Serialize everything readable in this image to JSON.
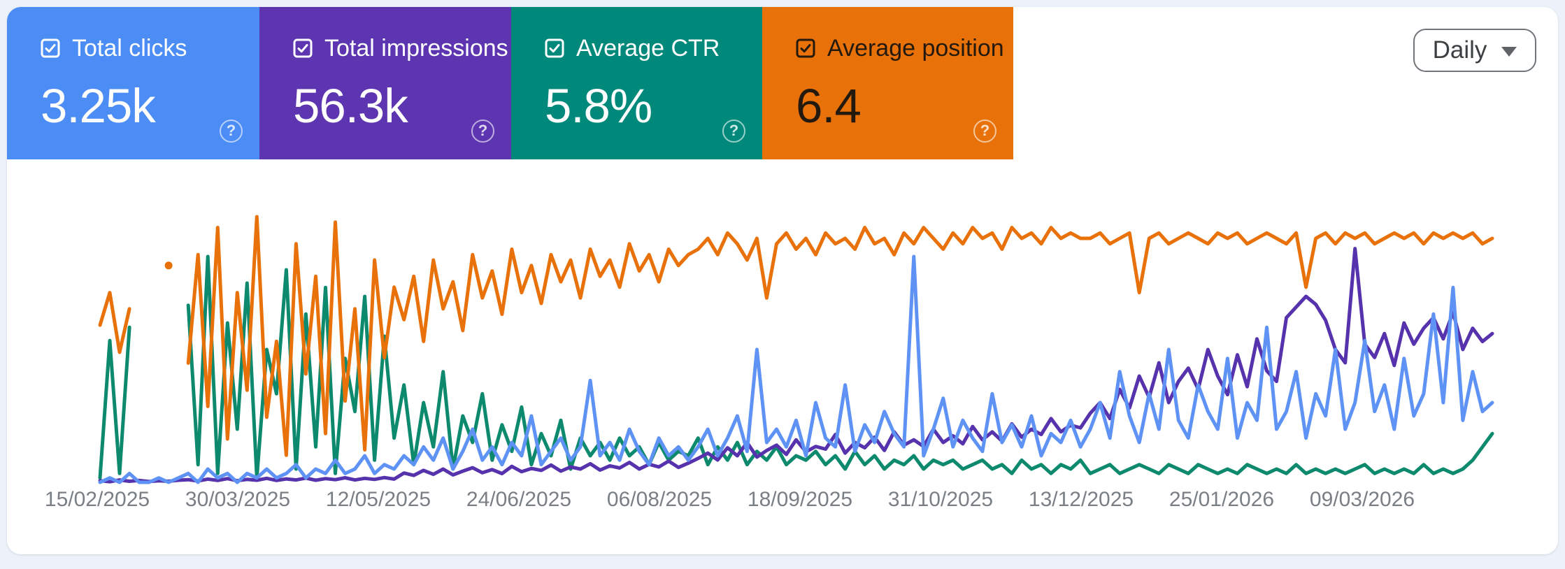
{
  "cards": [
    {
      "id": "clicks",
      "label": "Total clicks",
      "value": "3.25k",
      "bg": "#4c8df5",
      "text_color": "#ffffff",
      "checked": true
    },
    {
      "id": "impressions",
      "label": "Total impressions",
      "value": "56.3k",
      "bg": "#5e35b1",
      "text_color": "#ffffff",
      "checked": true
    },
    {
      "id": "ctr",
      "label": "Average CTR",
      "value": "5.8%",
      "bg": "#00897b",
      "text_color": "#ffffff",
      "checked": true
    },
    {
      "id": "position",
      "label": "Average position",
      "value": "6.4",
      "bg": "#e8710a",
      "text_color": "#23190d",
      "checked": true
    }
  ],
  "controls": {
    "granularity": "Daily"
  },
  "icons": {
    "help_glyph": "?"
  },
  "chart_data": {
    "type": "line",
    "title": "",
    "legend": "none",
    "grid": false,
    "x_unit": "date",
    "sample_interval_days": 3,
    "x_tick_labels": [
      "15/02/2025",
      "30/03/2025",
      "12/05/2025",
      "24/06/2025",
      "06/08/2025",
      "18/09/2025",
      "31/10/2025",
      "13/12/2025",
      "25/01/2026",
      "09/03/2026"
    ],
    "series": [
      {
        "id": "clicks",
        "name": "Clicks",
        "color": "#5e93f5",
        "axis_min": 0,
        "axis_max": 60,
        "reversed": false,
        "values": [
          0,
          1,
          0,
          2,
          0,
          0,
          1,
          0,
          1,
          2,
          0,
          3,
          1,
          2,
          0,
          2,
          1,
          3,
          1,
          2,
          4,
          1,
          3,
          2,
          5,
          2,
          3,
          6,
          2,
          4,
          3,
          6,
          4,
          8,
          5,
          10,
          3,
          7,
          12,
          5,
          8,
          4,
          9,
          6,
          15,
          4,
          7,
          10,
          5,
          8,
          23,
          6,
          9,
          5,
          12,
          7,
          4,
          10,
          6,
          8,
          5,
          8,
          12,
          6,
          10,
          15,
          7,
          30,
          9,
          12,
          8,
          14,
          6,
          18,
          10,
          8,
          22,
          7,
          13,
          9,
          16,
          11,
          8,
          51,
          6,
          12,
          19,
          8,
          14,
          10,
          7,
          20,
          9,
          13,
          8,
          15,
          6,
          11,
          9,
          14,
          8,
          12,
          18,
          10,
          25,
          15,
          9,
          20,
          12,
          30,
          14,
          10,
          22,
          16,
          12,
          28,
          10,
          18,
          14,
          35,
          12,
          16,
          25,
          10,
          20,
          15,
          30,
          12,
          18,
          32,
          16,
          22,
          12,
          28,
          15,
          20,
          38,
          18,
          44,
          14,
          25,
          16,
          18
        ]
      },
      {
        "id": "impressions",
        "name": "Impressions",
        "color": "#5632ad",
        "axis_min": 0,
        "axis_max": 1000,
        "reversed": false,
        "values": [
          6,
          2,
          9,
          4,
          7,
          3,
          6,
          4,
          8,
          10,
          5,
          12,
          7,
          14,
          6,
          11,
          8,
          15,
          7,
          13,
          9,
          16,
          8,
          14,
          10,
          17,
          9,
          15,
          11,
          18,
          12,
          35,
          26,
          45,
          30,
          50,
          28,
          42,
          55,
          36,
          48,
          33,
          60,
          40,
          52,
          45,
          65,
          42,
          58,
          50,
          70,
          46,
          62,
          54,
          75,
          50,
          68,
          58,
          80,
          56,
          72,
          90,
          110,
          84,
          130,
          100,
          150,
          95,
          120,
          140,
          105,
          160,
          115,
          135,
          125,
          180,
          110,
          150,
          130,
          170,
          120,
          190,
          140,
          160,
          135,
          200,
          150,
          175,
          145,
          210,
          160,
          190,
          155,
          220,
          170,
          200,
          180,
          240,
          190,
          215,
          205,
          260,
          300,
          240,
          350,
          280,
          400,
          320,
          450,
          300,
          380,
          430,
          350,
          500,
          400,
          330,
          480,
          360,
          540,
          420,
          380,
          620,
          660,
          700,
          670,
          610,
          500,
          450,
          880,
          520,
          470,
          560,
          440,
          600,
          520,
          580,
          620,
          540,
          640,
          500,
          580,
          530,
          560
        ]
      },
      {
        "id": "ctr",
        "name": "CTR (%)",
        "color": "#0d8a6d",
        "axis_min": 0,
        "axis_max": 60,
        "reversed": false,
        "values": [
          1,
          32,
          2,
          35,
          null,
          null,
          null,
          null,
          null,
          40,
          4,
          51,
          2,
          36,
          12,
          45,
          1,
          30,
          20,
          48,
          3,
          38,
          8,
          44,
          2,
          28,
          16,
          42,
          5,
          33,
          10,
          22,
          4,
          18,
          8,
          25,
          3,
          15,
          9,
          20,
          5,
          13,
          7,
          17,
          4,
          11,
          6,
          14,
          3,
          10,
          6,
          9,
          5,
          10,
          6,
          8,
          4,
          9,
          5,
          7,
          6,
          10,
          4,
          8,
          5,
          9,
          4,
          7,
          5,
          8,
          4,
          6,
          5,
          7,
          4,
          6,
          3,
          7,
          4,
          6,
          3,
          5,
          4,
          6,
          3,
          5,
          4,
          5,
          3,
          4,
          5,
          3,
          4,
          2,
          5,
          3,
          4,
          2,
          4,
          3,
          5,
          2,
          3,
          4,
          2,
          3,
          4,
          3,
          2,
          4,
          3,
          2,
          4,
          3,
          2,
          3,
          2,
          4,
          3,
          2,
          3,
          2,
          4,
          2,
          3,
          2,
          3,
          2,
          3,
          4,
          2,
          3,
          2,
          3,
          2,
          4,
          2,
          3,
          2,
          3,
          5,
          8,
          11
        ]
      },
      {
        "id": "position",
        "name": "Average position",
        "color": "#e8710a",
        "axis_min": 1,
        "axis_max": 50,
        "reversed": true,
        "values": [
          21,
          15,
          26,
          18,
          null,
          null,
          null,
          10,
          null,
          28,
          8,
          36,
          3,
          42,
          15,
          33,
          1,
          38,
          24,
          45,
          6,
          30,
          12,
          41,
          2,
          35,
          18,
          44,
          9,
          27,
          14,
          20,
          12,
          24,
          9,
          18,
          13,
          22,
          8,
          16,
          11,
          19,
          7,
          15,
          10,
          17,
          8,
          13,
          9,
          16,
          7,
          12,
          9,
          14,
          6,
          11,
          8,
          13,
          7,
          10,
          8,
          7,
          5,
          8,
          4,
          6,
          9,
          5,
          16,
          6,
          4,
          7,
          5,
          8,
          4,
          6,
          5,
          7,
          3,
          6,
          5,
          8,
          4,
          6,
          3,
          5,
          7,
          4,
          6,
          3,
          5,
          4,
          7,
          3,
          5,
          4,
          6,
          3,
          5,
          4,
          5,
          5,
          4,
          6,
          5,
          4,
          15,
          5,
          4,
          6,
          5,
          4,
          5,
          6,
          4,
          5,
          4,
          6,
          5,
          4,
          5,
          6,
          4,
          14,
          5,
          4,
          6,
          4,
          5,
          4,
          6,
          5,
          4,
          5,
          4,
          6,
          4,
          5,
          4,
          5,
          4,
          6,
          5
        ]
      }
    ]
  }
}
